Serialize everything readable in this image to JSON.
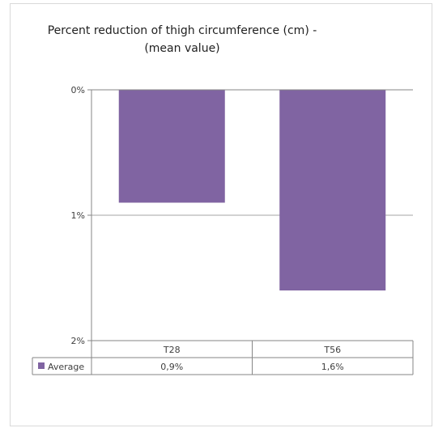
{
  "chart_data": {
    "type": "bar",
    "title_lines": [
      "Percent reduction of thigh circumference (cm) -",
      "(mean value)"
    ],
    "categories": [
      "T28",
      "T56"
    ],
    "series": [
      {
        "name": "Average",
        "values": [
          0.9,
          1.6
        ],
        "labels": [
          "0,9%",
          "1,6%"
        ],
        "color": "#8064a2"
      }
    ],
    "y_axis": {
      "min": 0,
      "max": 2,
      "reversed": true,
      "ticks": [
        0,
        1,
        2
      ],
      "tick_labels": [
        "0%",
        "1%",
        "2%"
      ]
    },
    "grid": true,
    "legend": "data-table",
    "xlabel": "",
    "ylabel": ""
  }
}
